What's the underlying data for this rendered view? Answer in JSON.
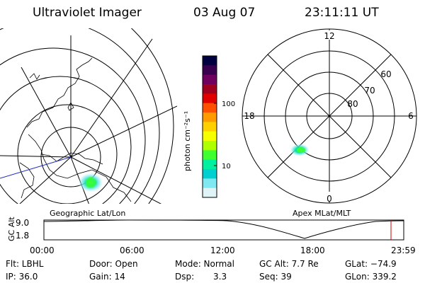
{
  "header": {
    "instrument": "Ultraviolet Imager",
    "date": "03 Aug 07",
    "time": "23:11:11 UT"
  },
  "colorbar": {
    "unit_label": "photon cm⁻²s⁻¹",
    "ticks": [
      "100",
      "10"
    ],
    "colors": [
      "#000040",
      "#3a0050",
      "#700060",
      "#a00020",
      "#e00000",
      "#ff5000",
      "#ff9a00",
      "#ffd000",
      "#f5ff00",
      "#b0ff00",
      "#40ff30",
      "#00f0a0",
      "#00d0d0",
      "#80e8f0",
      "#e0f4f8"
    ]
  },
  "geo_map": {
    "caption": "Geographic Lat/Lon"
  },
  "apex_map": {
    "caption": "Apex MLat/MLT",
    "mlt_labels": {
      "top": "12",
      "left": "18",
      "right": "6",
      "bottom": "0"
    },
    "mlat_labels": [
      "60",
      "70",
      "80"
    ]
  },
  "alt_plot": {
    "axis_label": "GC Alt",
    "y_max": "9.0",
    "y_min": "1.8",
    "time_ticks": [
      "00:00",
      "06:00",
      "12:00",
      "18:00",
      "23:59"
    ],
    "marker_color": "#d00000"
  },
  "info": {
    "filter": "Flt: LBHL",
    "ip": "IP: 36.0",
    "door": "Door: Open",
    "gain": "Gain: 14",
    "mode": "Mode: Normal",
    "dsp_label": "Dsp:",
    "dsp_value": "3.3",
    "gc_alt": "GC Alt: 7.7 Re",
    "seq": "Seq: 39",
    "glat": "GLat: −74.9",
    "glon": "GLon: 339.2"
  }
}
